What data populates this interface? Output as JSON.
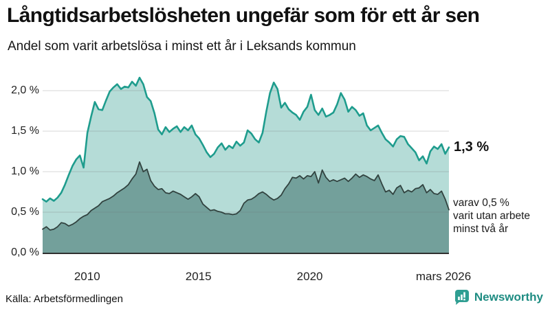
{
  "chart_data": {
    "type": "area",
    "title": "Långtidsarbetslösheten ungefär som för ett år sen",
    "subtitle": "Andel som varit arbetslösa i minst ett år i Leksands kommun",
    "source": "Källa: Arbetsförmedlingen",
    "grid": true,
    "legend_position": "end-of-line-annotations",
    "x": {
      "unit": "year",
      "start": 2008.0,
      "end": 2026.25,
      "tick_years": [
        2010,
        2015,
        2020,
        2026.17
      ],
      "tick_labels": [
        "2010",
        "2015",
        "2020",
        "mars 2026"
      ]
    },
    "y": {
      "unit": "%",
      "min": 0.0,
      "max": 2.3,
      "tick_values": [
        2.0,
        1.5,
        1.0,
        0.5,
        0.0
      ],
      "tick_labels": [
        "2,0 %",
        "1,5 %",
        "1,0 %",
        "0,5 %",
        "0,0 %"
      ]
    },
    "series": [
      {
        "name": "Andel arbetslösa minst ett år",
        "line_color": "#1e9c8d",
        "fill_color": "#b5dcd7",
        "latest_value": 1.3,
        "values": [
          0.66,
          0.63,
          0.67,
          0.64,
          0.68,
          0.74,
          0.84,
          0.96,
          1.07,
          1.15,
          1.2,
          1.05,
          1.48,
          1.68,
          1.86,
          1.77,
          1.76,
          1.88,
          1.99,
          2.04,
          2.08,
          2.02,
          2.05,
          2.04,
          2.11,
          2.06,
          2.16,
          2.08,
          1.92,
          1.87,
          1.72,
          1.52,
          1.46,
          1.55,
          1.49,
          1.53,
          1.56,
          1.49,
          1.55,
          1.51,
          1.57,
          1.46,
          1.41,
          1.33,
          1.24,
          1.18,
          1.22,
          1.3,
          1.35,
          1.27,
          1.32,
          1.29,
          1.37,
          1.32,
          1.36,
          1.51,
          1.47,
          1.4,
          1.36,
          1.48,
          1.74,
          1.97,
          2.1,
          2.02,
          1.79,
          1.85,
          1.77,
          1.73,
          1.7,
          1.64,
          1.74,
          1.8,
          1.95,
          1.76,
          1.7,
          1.78,
          1.68,
          1.7,
          1.73,
          1.83,
          1.97,
          1.89,
          1.74,
          1.8,
          1.76,
          1.69,
          1.72,
          1.57,
          1.51,
          1.54,
          1.57,
          1.48,
          1.4,
          1.36,
          1.31,
          1.4,
          1.44,
          1.43,
          1.34,
          1.29,
          1.24,
          1.14,
          1.19,
          1.1,
          1.25,
          1.31,
          1.28,
          1.34,
          1.22,
          1.3
        ]
      },
      {
        "name": "Andel arbetslösa minst två år",
        "line_color": "#31423f",
        "fill_color": "#73a09b",
        "latest_value": 0.5,
        "values": [
          0.29,
          0.32,
          0.28,
          0.29,
          0.32,
          0.37,
          0.36,
          0.33,
          0.35,
          0.38,
          0.42,
          0.45,
          0.47,
          0.52,
          0.55,
          0.58,
          0.63,
          0.65,
          0.67,
          0.7,
          0.74,
          0.77,
          0.8,
          0.84,
          0.91,
          0.97,
          1.12,
          1.0,
          1.03,
          0.89,
          0.82,
          0.78,
          0.79,
          0.74,
          0.73,
          0.76,
          0.74,
          0.72,
          0.69,
          0.66,
          0.69,
          0.73,
          0.69,
          0.6,
          0.56,
          0.52,
          0.53,
          0.51,
          0.5,
          0.48,
          0.48,
          0.47,
          0.48,
          0.52,
          0.61,
          0.65,
          0.66,
          0.69,
          0.73,
          0.75,
          0.72,
          0.68,
          0.65,
          0.67,
          0.71,
          0.79,
          0.85,
          0.93,
          0.92,
          0.95,
          0.91,
          0.95,
          0.94,
          1.0,
          0.86,
          1.02,
          0.93,
          0.88,
          0.9,
          0.88,
          0.9,
          0.92,
          0.88,
          0.92,
          0.97,
          0.93,
          0.96,
          0.94,
          0.91,
          0.89,
          0.96,
          0.85,
          0.75,
          0.77,
          0.72,
          0.8,
          0.83,
          0.74,
          0.77,
          0.75,
          0.79,
          0.8,
          0.84,
          0.74,
          0.78,
          0.73,
          0.72,
          0.76,
          0.66,
          0.53
        ]
      }
    ],
    "annotations": {
      "latest_total": "1,3 %",
      "latest_secondary_lines": [
        "varav 0,5 %",
        "varit utan arbete",
        "minst två år"
      ]
    },
    "colors": {
      "gridline": "#e0e0e0",
      "baseline": "#2f2f2f",
      "brand_teal": "#1e8c82",
      "brand_icon_bg": "#2f9e92"
    }
  },
  "footer": {
    "brand_name": "Newsworthy"
  }
}
